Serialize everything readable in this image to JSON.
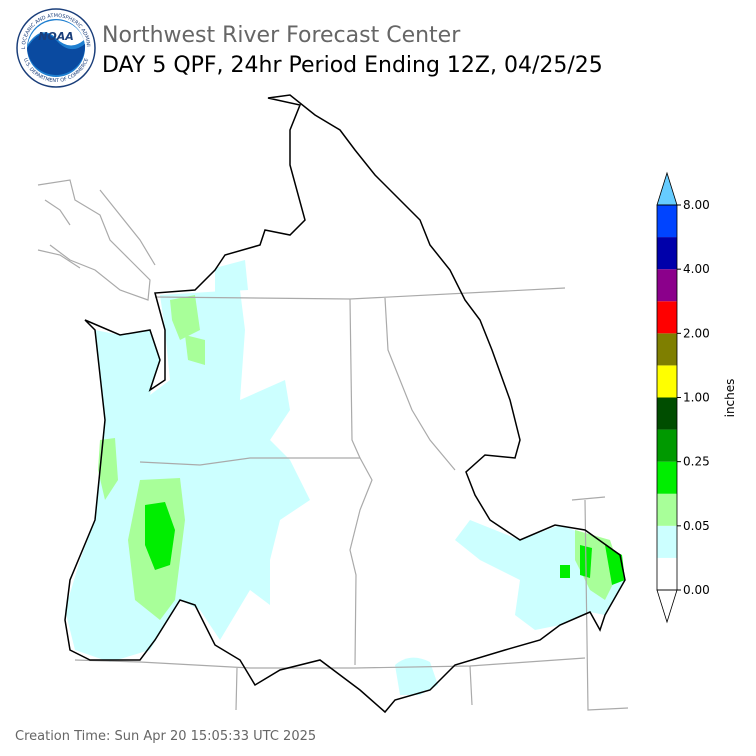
{
  "header": {
    "title": "Northwest River Forecast Center",
    "subtitle": "DAY 5 QPF, 24hr Period Ending 12Z, 04/25/25"
  },
  "logo": {
    "text": "NOAA",
    "ring_text": "NATIONAL OCEANIC AND ATMOSPHERIC ADMINISTRATION",
    "ring_text_bottom": "U.S. DEPARTMENT OF COMMERCE"
  },
  "colorbar": {
    "label": "inches",
    "colors": [
      "#ffffff",
      "#ccffff",
      "#a8ff99",
      "#00ee00",
      "#009900",
      "#004d00",
      "#ffff00",
      "#7f7f00",
      "#ff0000",
      "#8b008b",
      "#0000aa",
      "#0044ff"
    ],
    "under_color": "#ffffff",
    "over_color": "#66ccff",
    "ticks": [
      {
        "value": 0,
        "label": "0.00"
      },
      {
        "value": 0.05,
        "label": "0.05"
      },
      {
        "value": 0.25,
        "label": "0.25"
      },
      {
        "value": 1,
        "label": "1.00"
      },
      {
        "value": 2,
        "label": "2.00"
      },
      {
        "value": 4,
        "label": "4.00"
      },
      {
        "value": 8,
        "label": "8.00"
      }
    ]
  },
  "footer": {
    "creation_time": "Creation Time: Sun Apr 20 15:05:33 UTC 2025"
  }
}
